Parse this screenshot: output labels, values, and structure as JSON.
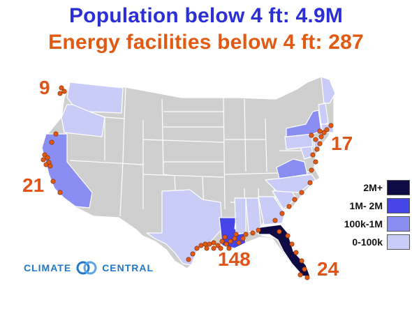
{
  "title_population": "Population below 4 ft: 4.9M",
  "title_energy": "Energy facilities below 4 ft: 287",
  "region_counts": [
    {
      "id": "washington",
      "value": "9"
    },
    {
      "id": "california",
      "value": "21"
    },
    {
      "id": "northeast",
      "value": "17"
    },
    {
      "id": "gulf",
      "value": "148"
    },
    {
      "id": "florida",
      "value": "24"
    }
  ],
  "legend": [
    {
      "label": "2M+",
      "color": "#0d0a44"
    },
    {
      "label": "1M- 2M",
      "color": "#4646e8"
    },
    {
      "label": "100k-1M",
      "color": "#8a8ef2"
    },
    {
      "label": "0-100k",
      "color": "#c9ccf7"
    }
  ],
  "logo": {
    "left": "CLIMATE",
    "right": "CENTRAL",
    "icon": "interlocking-rings-icon"
  },
  "colors": {
    "base_state": "#cfcfcf",
    "facility_dot": "#e25a12",
    "title_blue": "#2b2fd6",
    "title_orange": "#e25a12"
  }
}
